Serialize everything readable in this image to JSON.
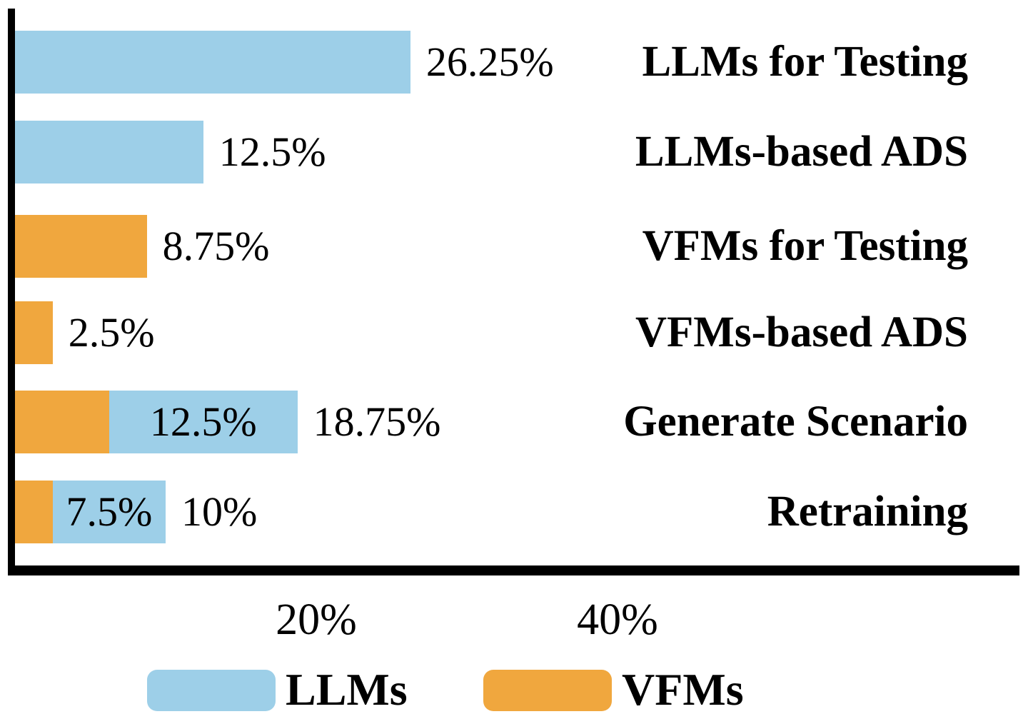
{
  "figure": {
    "background_color": "#FFFFFF",
    "axis_color": "#000000"
  },
  "chart_data": {
    "type": "bar",
    "orientation": "horizontal",
    "unit": "%",
    "grid": false,
    "xlim": [
      0,
      67
    ],
    "title": "",
    "xlabel": "",
    "ylabel": "",
    "categories": [
      "LLMs for Testing",
      "LLMs-based ADS",
      "VFMs for Testing",
      "VFMs-based ADS",
      "Generate Scenario",
      "Retraining"
    ],
    "series": [
      {
        "name": "LLMs",
        "color": "#9DCFE8",
        "values": [
          26.25,
          12.5,
          0,
          0,
          12.5,
          7.5
        ]
      },
      {
        "name": "VFMs",
        "color": "#F0A73E",
        "values": [
          0,
          0,
          8.75,
          2.5,
          6.25,
          2.5
        ]
      }
    ],
    "rows": [
      {
        "category": "LLMs for Testing",
        "segments": [
          {
            "series": "LLMs",
            "value": 26.25,
            "label": ""
          }
        ],
        "total_label": "26.25%"
      },
      {
        "category": "LLMs-based ADS",
        "segments": [
          {
            "series": "LLMs",
            "value": 12.5,
            "label": ""
          }
        ],
        "total_label": "12.5%"
      },
      {
        "category": "VFMs for Testing",
        "segments": [
          {
            "series": "VFMs",
            "value": 8.75,
            "label": ""
          }
        ],
        "total_label": "8.75%"
      },
      {
        "category": "VFMs-based ADS",
        "segments": [
          {
            "series": "VFMs",
            "value": 2.5,
            "label": ""
          }
        ],
        "total_label": "2.5%"
      },
      {
        "category": "Generate Scenario",
        "segments": [
          {
            "series": "VFMs",
            "value": 6.25,
            "label": ""
          },
          {
            "series": "LLMs",
            "value": 12.5,
            "label": "12.5%"
          }
        ],
        "total_label": "18.75%"
      },
      {
        "category": "Retraining",
        "segments": [
          {
            "series": "VFMs",
            "value": 2.5,
            "label": ""
          },
          {
            "series": "LLMs",
            "value": 7.5,
            "label": "7.5%"
          }
        ],
        "total_label": "10%"
      }
    ],
    "x_ticks": [
      {
        "label": "20%",
        "value": 20
      },
      {
        "label": "40%",
        "value": 40
      }
    ],
    "legend": {
      "position": "bottom",
      "entries": [
        {
          "label": "LLMs",
          "color": "#9DCFE8"
        },
        {
          "label": "VFMs",
          "color": "#F0A73E"
        }
      ]
    }
  }
}
